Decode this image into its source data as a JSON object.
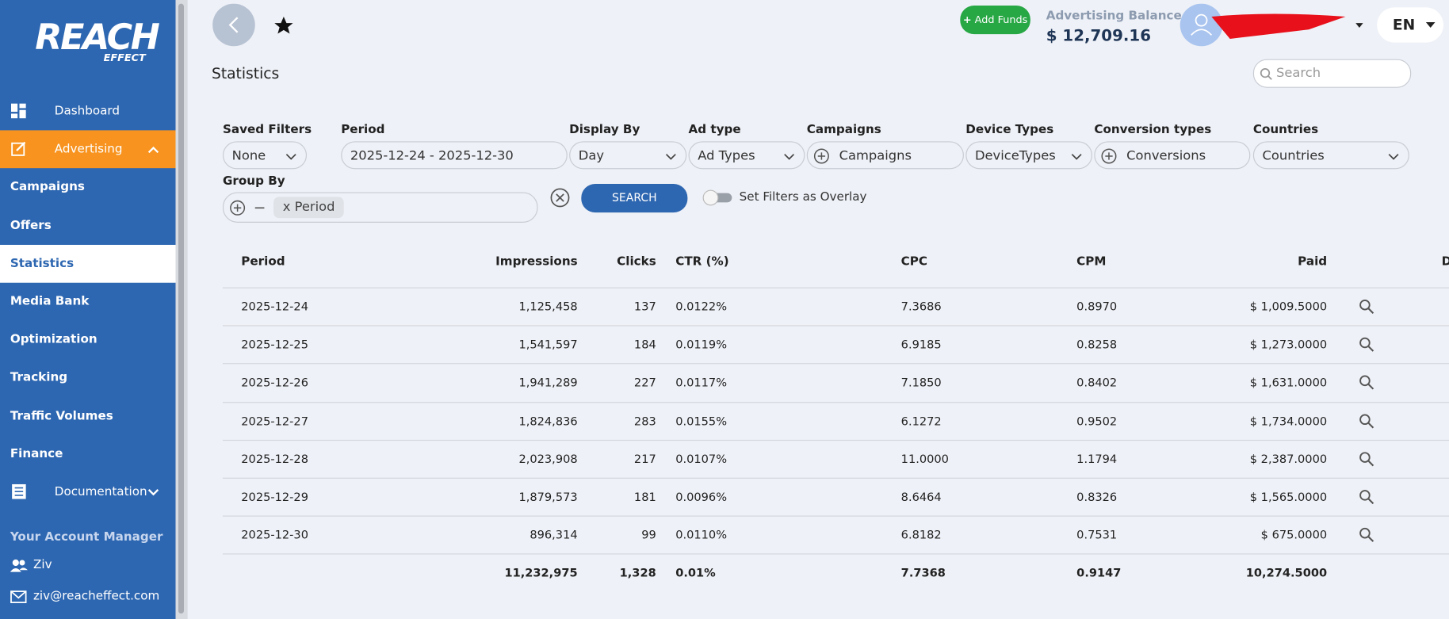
{
  "sidebar": {
    "logo": {
      "main": "REACH",
      "sub": "EFFECT"
    },
    "nav": [
      {
        "label": "Dashboard",
        "icon": "grid"
      },
      {
        "label": "Advertising",
        "icon": "edit",
        "state": "open"
      },
      {
        "label": "Campaigns"
      },
      {
        "label": "Offers"
      },
      {
        "label": "Statistics",
        "state": "active"
      },
      {
        "label": "Media Bank"
      },
      {
        "label": "Optimization"
      },
      {
        "label": "Tracking"
      },
      {
        "label": "Traffic Volumes"
      },
      {
        "label": "Finance"
      },
      {
        "label": "Documentation",
        "icon": "doc"
      }
    ],
    "account_manager": {
      "title": "Your Account Manager",
      "name": "Ziv",
      "email": "ziv@reacheffect.com"
    }
  },
  "header": {
    "add_funds": "Add Funds",
    "balance_label": "Advertising Balance",
    "balance": "$ 12,709.16",
    "language": "EN",
    "page_title": "Statistics",
    "search_placeholder": "Search"
  },
  "filters": [
    {
      "label": "Saved Filters",
      "value": "None",
      "kind": "select"
    },
    {
      "label": "Period",
      "value": "2025-12-24 - 2025-12-30",
      "kind": "text"
    },
    {
      "label": "Display By",
      "value": "Day",
      "kind": "select"
    },
    {
      "label": "Ad type",
      "value": "Ad Types",
      "kind": "select"
    },
    {
      "label": "Campaigns",
      "value": "Campaigns",
      "kind": "multi"
    },
    {
      "label": "Device Types",
      "value": "DeviceTypes",
      "kind": "select"
    },
    {
      "label": "Conversion types",
      "value": "Conversions",
      "kind": "multi"
    },
    {
      "label": "Countries",
      "value": "Countries",
      "kind": "select"
    }
  ],
  "group_by": {
    "label": "Group By",
    "chip": "x Period",
    "search_button": "SEARCH",
    "overlay_toggle": "Set Filters as Overlay"
  },
  "table": {
    "columns": [
      "Period",
      "Impressions",
      "Clicks",
      "CTR (%)",
      "CPC",
      "CPM",
      "Paid",
      "D"
    ],
    "rows": [
      [
        "2025-12-24",
        "1,125,458",
        "137",
        "0.0122%",
        "7.3686",
        "0.8970",
        "$ 1,009.5000"
      ],
      [
        "2025-12-25",
        "1,541,597",
        "184",
        "0.0119%",
        "6.9185",
        "0.8258",
        "$ 1,273.0000"
      ],
      [
        "2025-12-26",
        "1,941,289",
        "227",
        "0.0117%",
        "7.1850",
        "0.8402",
        "$ 1,631.0000"
      ],
      [
        "2025-12-27",
        "1,824,836",
        "283",
        "0.0155%",
        "6.1272",
        "0.9502",
        "$ 1,734.0000"
      ],
      [
        "2025-12-28",
        "2,023,908",
        "217",
        "0.0107%",
        "11.0000",
        "1.1794",
        "$ 2,387.0000"
      ],
      [
        "2025-12-29",
        "1,879,573",
        "181",
        "0.0096%",
        "8.6464",
        "0.8326",
        "$ 1,565.0000"
      ],
      [
        "2025-12-30",
        "896,314",
        "99",
        "0.0110%",
        "6.8182",
        "0.7531",
        "$ 675.0000"
      ]
    ],
    "totals": [
      null,
      "11,232,975",
      "1,328",
      "0.01%",
      "7.7368",
      "0.9147",
      "10,274.5000"
    ]
  }
}
